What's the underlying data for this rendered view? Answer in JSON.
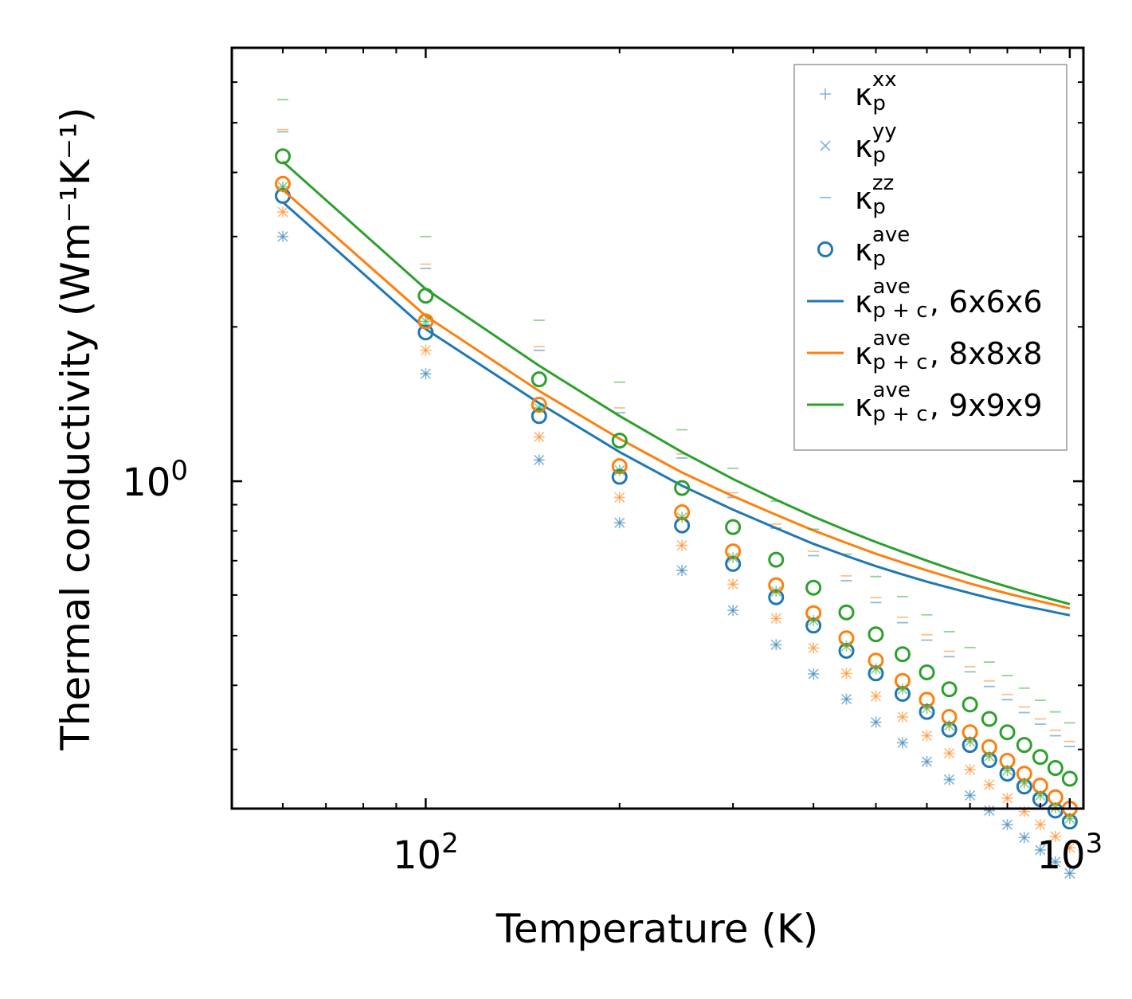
{
  "chart_data": {
    "type": "scatter",
    "title": "",
    "xlabel": "Temperature (K)",
    "ylabel": "Thermal conductivity (Wm⁻¹K⁻¹)",
    "xscale": "log",
    "yscale": "log",
    "xlim": [
      50,
      1050
    ],
    "ylim": [
      0.23,
      7.0
    ],
    "x_major_ticks": [
      {
        "value": 100,
        "base": "10",
        "exp": "2"
      },
      {
        "value": 1000,
        "base": "10",
        "exp": "3"
      }
    ],
    "y_major_ticks": [
      {
        "value": 1,
        "base": "10",
        "exp": "0"
      }
    ],
    "x": [
      60,
      100,
      150,
      200,
      250,
      300,
      350,
      400,
      450,
      500,
      550,
      600,
      650,
      700,
      750,
      800,
      850,
      900,
      950,
      1000
    ],
    "legend": {
      "position": "upper right",
      "entries": [
        {
          "marker": "plus",
          "sym": "κ",
          "sup": "xx",
          "sub": "p",
          "suffix": ""
        },
        {
          "marker": "x",
          "sym": "κ",
          "sup": "yy",
          "sub": "p",
          "suffix": ""
        },
        {
          "marker": "hline",
          "sym": "κ",
          "sup": "zz",
          "sub": "p",
          "suffix": ""
        },
        {
          "marker": "circle",
          "sym": "κ",
          "sup": "ave",
          "sub": "p",
          "suffix": ""
        },
        {
          "marker": "line",
          "color": "#1f77b4",
          "sym": "κ",
          "sup": "ave",
          "sub": "p + c",
          "suffix": ", 6x6x6"
        },
        {
          "marker": "line",
          "color": "#ff7f0e",
          "sym": "κ",
          "sup": "ave",
          "sub": "p + c",
          "suffix": ", 8x8x8"
        },
        {
          "marker": "line",
          "color": "#2ca02c",
          "sym": "κ",
          "sup": "ave",
          "sub": "p + c",
          "suffix": ", 9x9x9"
        }
      ]
    },
    "series": [
      {
        "name": "6x6x6",
        "color": "#1f77b4",
        "kappa_p_xx": [
          3.0,
          1.62,
          1.1,
          0.83,
          0.67,
          0.56,
          0.48,
          0.421,
          0.376,
          0.339,
          0.309,
          0.284,
          0.262,
          0.244,
          0.228,
          0.214,
          0.202,
          0.191,
          0.181,
          0.172
        ],
        "kappa_p_yy": [
          3.0,
          1.62,
          1.1,
          0.83,
          0.67,
          0.56,
          0.48,
          0.421,
          0.376,
          0.339,
          0.309,
          0.284,
          0.262,
          0.244,
          0.228,
          0.214,
          0.202,
          0.191,
          0.181,
          0.172
        ],
        "kappa_p_zz": [
          4.8,
          2.6,
          1.8,
          1.36,
          1.11,
          0.93,
          0.81,
          0.716,
          0.64,
          0.58,
          0.53,
          0.49,
          0.455,
          0.425,
          0.398,
          0.375,
          0.354,
          0.336,
          0.319,
          0.304
        ],
        "kappa_p_ave": [
          3.6,
          1.95,
          1.34,
          1.02,
          0.82,
          0.69,
          0.594,
          0.523,
          0.467,
          0.422,
          0.385,
          0.355,
          0.328,
          0.306,
          0.286,
          0.269,
          0.254,
          0.24,
          0.228,
          0.217
        ],
        "kappa_p_c_ave": [
          3.5,
          1.98,
          1.42,
          1.14,
          0.98,
          0.88,
          0.81,
          0.755,
          0.715,
          0.683,
          0.658,
          0.637,
          0.62,
          0.605,
          0.592,
          0.581,
          0.571,
          0.563,
          0.555,
          0.548
        ]
      },
      {
        "name": "8x8x8",
        "color": "#ff7f0e",
        "kappa_p_xx": [
          3.35,
          1.8,
          1.22,
          0.93,
          0.75,
          0.63,
          0.54,
          0.473,
          0.422,
          0.381,
          0.347,
          0.319,
          0.295,
          0.274,
          0.256,
          0.241,
          0.227,
          0.214,
          0.203,
          0.193
        ],
        "kappa_p_yy": [
          3.35,
          1.8,
          1.22,
          0.93,
          0.75,
          0.63,
          0.54,
          0.473,
          0.422,
          0.381,
          0.347,
          0.319,
          0.295,
          0.274,
          0.256,
          0.241,
          0.227,
          0.214,
          0.203,
          0.193
        ],
        "kappa_p_zz": [
          4.85,
          2.65,
          1.83,
          1.39,
          1.13,
          0.95,
          0.825,
          0.73,
          0.654,
          0.593,
          0.543,
          0.502,
          0.466,
          0.435,
          0.408,
          0.384,
          0.363,
          0.344,
          0.327,
          0.311
        ],
        "kappa_p_ave": [
          3.8,
          2.05,
          1.41,
          1.07,
          0.87,
          0.73,
          0.627,
          0.553,
          0.494,
          0.447,
          0.408,
          0.375,
          0.347,
          0.324,
          0.303,
          0.285,
          0.269,
          0.255,
          0.242,
          0.23
        ],
        "kappa_p_c_ave": [
          3.7,
          2.1,
          1.5,
          1.21,
          1.04,
          0.935,
          0.86,
          0.802,
          0.758,
          0.722,
          0.694,
          0.67,
          0.65,
          0.632,
          0.617,
          0.604,
          0.593,
          0.583,
          0.574,
          0.565
        ]
      },
      {
        "name": "9x9x9",
        "color": "#2ca02c",
        "kappa_p_xx": [
          3.75,
          2.05,
          1.39,
          1.05,
          0.85,
          0.71,
          0.61,
          0.535,
          0.477,
          0.431,
          0.393,
          0.361,
          0.334,
          0.311,
          0.291,
          0.273,
          0.258,
          0.244,
          0.231,
          0.22
        ],
        "kappa_p_yy": [
          3.75,
          2.05,
          1.39,
          1.05,
          0.85,
          0.71,
          0.61,
          0.535,
          0.477,
          0.431,
          0.393,
          0.361,
          0.334,
          0.311,
          0.291,
          0.273,
          0.258,
          0.244,
          0.231,
          0.22
        ],
        "kappa_p_zz": [
          5.55,
          3.0,
          2.06,
          1.56,
          1.26,
          1.06,
          0.915,
          0.806,
          0.721,
          0.652,
          0.596,
          0.549,
          0.509,
          0.474,
          0.444,
          0.418,
          0.395,
          0.374,
          0.355,
          0.338
        ],
        "kappa_p_ave": [
          4.3,
          2.3,
          1.58,
          1.2,
          0.97,
          0.814,
          0.703,
          0.62,
          0.555,
          0.503,
          0.46,
          0.424,
          0.393,
          0.367,
          0.344,
          0.324,
          0.306,
          0.29,
          0.276,
          0.263
        ],
        "kappa_p_c_ave": [
          4.2,
          2.37,
          1.68,
          1.34,
          1.14,
          1.01,
          0.92,
          0.853,
          0.802,
          0.761,
          0.728,
          0.7,
          0.676,
          0.656,
          0.638,
          0.623,
          0.609,
          0.597,
          0.586,
          0.576
        ]
      }
    ]
  }
}
